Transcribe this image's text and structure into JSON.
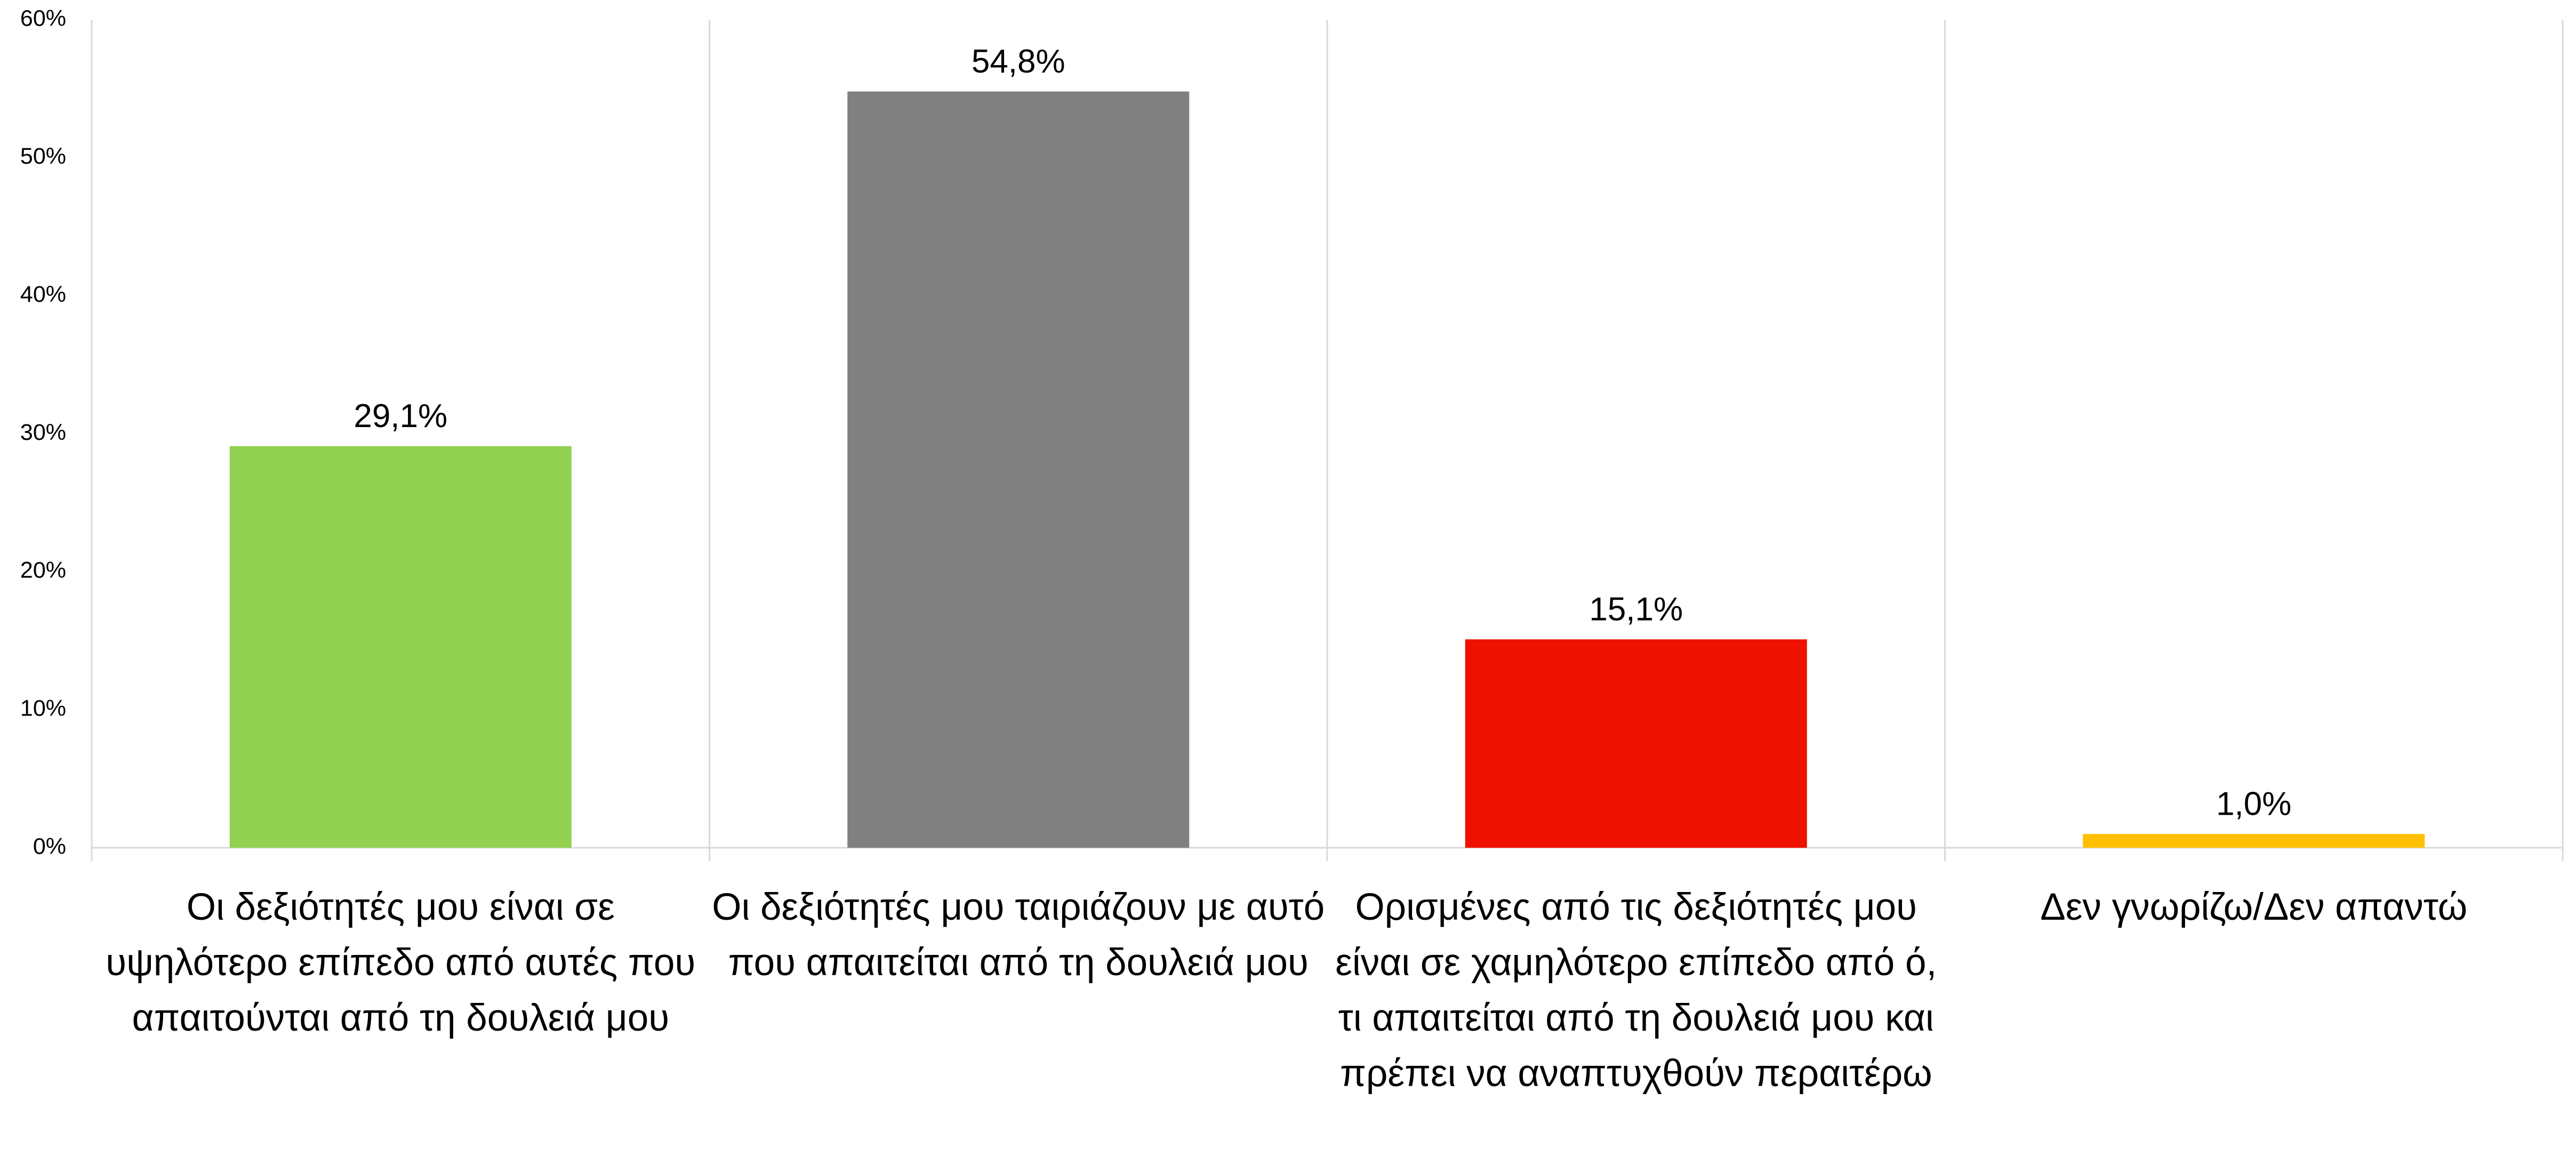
{
  "chart_data": {
    "type": "bar",
    "categories": [
      "Οι δεξιότητές μου είναι σε υψηλότερο επίπεδο από αυτές που απαιτούνται από τη δουλειά μου",
      "Οι δεξιότητές μου ταιριάζουν με αυτό που απαιτείται από τη δουλειά μου",
      "Ορισμένες από τις δεξιότητές μου είναι σε χαμηλότερο επίπεδο από ό, τι απαιτείται από τη δουλειά μου και  πρέπει να αναπτυχθούν περαιτέρω",
      "Δεν γνωρίζω/Δεν απαντώ"
    ],
    "values": [
      29.1,
      54.8,
      15.1,
      1.0
    ],
    "value_labels": [
      "29,1%",
      "54,8%",
      "15,1%",
      "1,0%"
    ],
    "colors": [
      "#92d050",
      "#808080",
      "#ee1100",
      "#ffc000"
    ],
    "ylim": [
      0,
      60
    ],
    "yticks": [
      {
        "value": 0,
        "label": "0%"
      },
      {
        "value": 10,
        "label": "10%"
      },
      {
        "value": 20,
        "label": "20%"
      },
      {
        "value": 30,
        "label": "30%"
      },
      {
        "value": 40,
        "label": "40%"
      },
      {
        "value": 50,
        "label": "50%"
      },
      {
        "value": 60,
        "label": "60%"
      }
    ],
    "grid": false
  }
}
